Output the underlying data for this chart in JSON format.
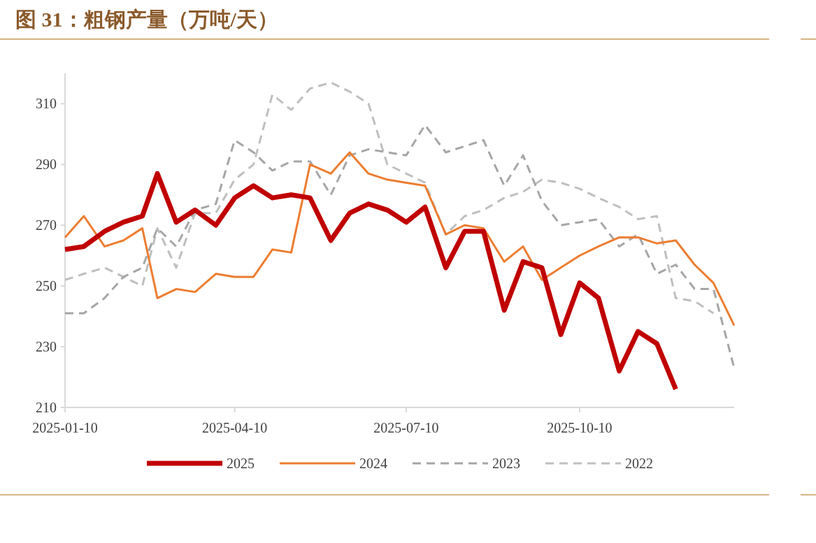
{
  "chart_data": {
    "type": "line",
    "title": "图 31：粗钢产量（万吨/天）",
    "x": [
      "2025-01-10",
      "2025-01-20",
      "2025-01-31",
      "2025-02-10",
      "2025-02-20",
      "2025-02-28",
      "2025-03-10",
      "2025-03-20",
      "2025-03-31",
      "2025-04-10",
      "2025-04-20",
      "2025-04-30",
      "2025-05-10",
      "2025-05-20",
      "2025-05-31",
      "2025-06-10",
      "2025-06-20",
      "2025-06-30",
      "2025-07-10",
      "2025-07-20",
      "2025-07-31",
      "2025-08-10",
      "2025-08-20",
      "2025-08-31",
      "2025-09-10",
      "2025-09-20",
      "2025-09-30",
      "2025-10-10",
      "2025-10-20",
      "2025-10-31",
      "2025-11-10",
      "2025-11-20",
      "2025-11-30",
      "2025-12-10",
      "2025-12-20",
      "2025-12-31"
    ],
    "xlim": [
      "2025-01-10",
      "2025-12-31"
    ],
    "xticks": [
      "2025-01-10",
      "2025-04-10",
      "2025-07-10",
      "2025-10-10"
    ],
    "ylim": [
      210,
      320
    ],
    "yticks": [
      210,
      230,
      250,
      270,
      290,
      310
    ],
    "grid": false,
    "legend": "bottom",
    "series": [
      {
        "name": "2025",
        "color": "#c00000",
        "line_style": "solid",
        "values": [
          262,
          263,
          268,
          271,
          273,
          287,
          271,
          275,
          270,
          279,
          283,
          279,
          280,
          279,
          265,
          274,
          277,
          275,
          271,
          276,
          256,
          268,
          268,
          242,
          258,
          256,
          234,
          251,
          246,
          222,
          235,
          231,
          216,
          null,
          null,
          null
        ]
      },
      {
        "name": "2024",
        "color": "#ed7d31",
        "line_style": "solid",
        "values": [
          266,
          273,
          263,
          265,
          269,
          246,
          249,
          248,
          254,
          253,
          253,
          262,
          261,
          290,
          287,
          294,
          287,
          285,
          284,
          283,
          267,
          270,
          269,
          258,
          263,
          252,
          256,
          260,
          263,
          266,
          266,
          264,
          265,
          257,
          251,
          237
        ]
      },
      {
        "name": "2023",
        "color": "#a6a6a6",
        "line_style": "dashed",
        "values": [
          241,
          241,
          246,
          253,
          256,
          269,
          263,
          275,
          277,
          298,
          294,
          288,
          291,
          291,
          280,
          293,
          295,
          294,
          293,
          303,
          294,
          296,
          298,
          283,
          293,
          278,
          270,
          271,
          272,
          263,
          267,
          254,
          257,
          249,
          249,
          223
        ]
      },
      {
        "name": "2022",
        "color": "#bfbfbf",
        "line_style": "dashed",
        "values": [
          252,
          254,
          256,
          253,
          250,
          269,
          256,
          274,
          274,
          285,
          290,
          313,
          308,
          315,
          317,
          314,
          310,
          290,
          287,
          284,
          267,
          273,
          275,
          279,
          281,
          285,
          284,
          282,
          279,
          276,
          272,
          273,
          246,
          245,
          241,
          null
        ]
      }
    ]
  }
}
